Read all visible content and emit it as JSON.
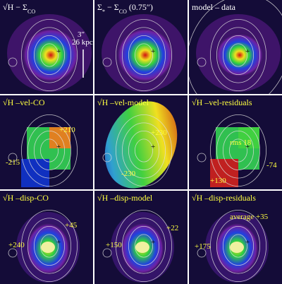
{
  "panels": [
    {
      "title": [
        {
          "text": "√H − Σ"
        },
        {
          "sub": "CO"
        }
      ],
      "labels": [
        "3\"",
        "26 kpc"
      ]
    },
    {
      "title": [
        {
          "text": "Σ"
        },
        {
          "sub": "*"
        },
        {
          "text": " − Σ"
        },
        {
          "sub": "CO"
        },
        {
          "text": " (0.75″)"
        }
      ],
      "labels": []
    },
    {
      "title": [
        {
          "text": "model – data"
        }
      ],
      "labels": []
    },
    {
      "title": [
        {
          "text": "√H –vel-CO"
        }
      ],
      "labels": [
        "+210",
        "-215"
      ]
    },
    {
      "title": [
        {
          "text": "√H –vel-model"
        }
      ],
      "labels": [
        "+230",
        "-230"
      ]
    },
    {
      "title": [
        {
          "text": "√H –vel-residuals"
        }
      ],
      "labels": [
        "rms 18",
        "-74",
        "+130"
      ]
    },
    {
      "title": [
        {
          "text": "√H –disp-CO"
        }
      ],
      "labels": [
        "+45",
        "+240"
      ]
    },
    {
      "title": [
        {
          "text": "√H –disp-model"
        }
      ],
      "labels": [
        "+22",
        "+150"
      ]
    },
    {
      "title": [
        {
          "text": "√H –disp-residuals"
        }
      ],
      "labels": [
        "average +35",
        "+175"
      ]
    }
  ]
}
